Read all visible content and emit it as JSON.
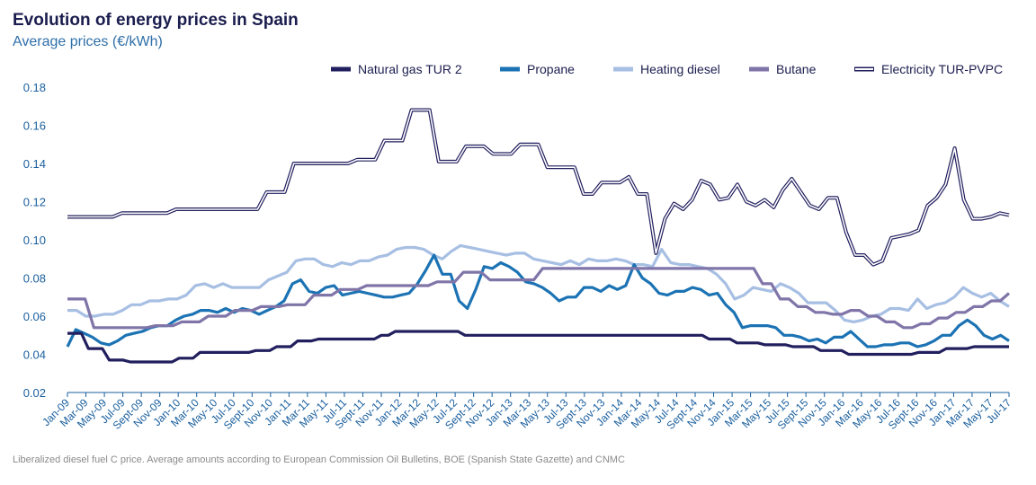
{
  "chart_data": {
    "type": "line",
    "title": "Evolution of energy prices in Spain",
    "subtitle": "Average prices (€/kWh)",
    "note": "Liberalized diesel fuel C price. Average amounts according to European Commission Oil Bulletins, BOE (Spanish State Gazette) and CNMC",
    "ylim": [
      0.02,
      0.18
    ],
    "yticks": [
      "0.02",
      "0.04",
      "0.06",
      "0.08",
      "0.10",
      "0.12",
      "0.14",
      "0.16",
      "0.18"
    ],
    "xtick_labels": [
      "Jan-09",
      "Mar-09",
      "May-09",
      "Jul-09",
      "Sept-09",
      "Nov-09",
      "Jan-10",
      "Mar-10",
      "May-10",
      "Jul-10",
      "Sept-10",
      "Nov-10",
      "Jan-11",
      "Mar-11",
      "May-11",
      "Jul-11",
      "Sept-11",
      "Nov-11",
      "Jan-12",
      "Mar-12",
      "May-12",
      "Jul-12",
      "Sept-12",
      "Nov-12",
      "Jan-13",
      "Mar-13",
      "May-13",
      "Jul-13",
      "Sept-13",
      "Nov-13",
      "Jan-14",
      "Mar-14",
      "May-14",
      "Jul-14",
      "Sept-14",
      "Nov-14",
      "Jan-15",
      "Mar-15",
      "May-15",
      "Jul-15",
      "Sept-15",
      "Nov-15",
      "Jan-16",
      "Mar-16",
      "May-16",
      "Jul-16",
      "Sept-16",
      "Nov-16",
      "Jan-17",
      "Mar-17",
      "May-17",
      "Jul-17"
    ],
    "series": [
      {
        "name": "Natural gas TUR 2",
        "color": "#221f5e",
        "style": "solid",
        "values": [
          0.051,
          0.051,
          0.051,
          0.043,
          0.043,
          0.043,
          0.037,
          0.037,
          0.037,
          0.036,
          0.036,
          0.036,
          0.036,
          0.036,
          0.036,
          0.036,
          0.038,
          0.038,
          0.038,
          0.041,
          0.041,
          0.041,
          0.041,
          0.041,
          0.041,
          0.041,
          0.041,
          0.042,
          0.042,
          0.042,
          0.044,
          0.044,
          0.044,
          0.047,
          0.047,
          0.047,
          0.048,
          0.048,
          0.048,
          0.048,
          0.048,
          0.048,
          0.048,
          0.048,
          0.048,
          0.05,
          0.05,
          0.052,
          0.052,
          0.052,
          0.052,
          0.052,
          0.052,
          0.052,
          0.052,
          0.052,
          0.052,
          0.05,
          0.05,
          0.05,
          0.05,
          0.05,
          0.05,
          0.05,
          0.05,
          0.05,
          0.05,
          0.05,
          0.05,
          0.05,
          0.05,
          0.05,
          0.05,
          0.05,
          0.05,
          0.05,
          0.05,
          0.05,
          0.05,
          0.05,
          0.05,
          0.05,
          0.05,
          0.05,
          0.05,
          0.05,
          0.05,
          0.05,
          0.05,
          0.05,
          0.05,
          0.05,
          0.048,
          0.048,
          0.048,
          0.048,
          0.046,
          0.046,
          0.046,
          0.046,
          0.045,
          0.045,
          0.045,
          0.045,
          0.044,
          0.044,
          0.044,
          0.044,
          0.042,
          0.042,
          0.042,
          0.042,
          0.04,
          0.04,
          0.04,
          0.04,
          0.04,
          0.04,
          0.04,
          0.04,
          0.04,
          0.04,
          0.041,
          0.041,
          0.041,
          0.041,
          0.043,
          0.043,
          0.043,
          0.043,
          0.044,
          0.044,
          0.044,
          0.044,
          0.044,
          0.044
        ]
      },
      {
        "name": "Propane",
        "color": "#1c73b4",
        "style": "solid",
        "values": [
          0.044,
          0.053,
          0.051,
          0.049,
          0.046,
          0.045,
          0.047,
          0.05,
          0.051,
          0.052,
          0.054,
          0.055,
          0.055,
          0.058,
          0.06,
          0.061,
          0.063,
          0.063,
          0.062,
          0.064,
          0.062,
          0.064,
          0.063,
          0.061,
          0.063,
          0.065,
          0.068,
          0.077,
          0.079,
          0.073,
          0.072,
          0.075,
          0.076,
          0.071,
          0.072,
          0.073,
          0.072,
          0.071,
          0.07,
          0.07,
          0.071,
          0.072,
          0.077,
          0.084,
          0.092,
          0.082,
          0.082,
          0.068,
          0.064,
          0.074,
          0.086,
          0.085,
          0.088,
          0.086,
          0.083,
          0.078,
          0.077,
          0.075,
          0.072,
          0.068,
          0.07,
          0.07,
          0.075,
          0.075,
          0.073,
          0.076,
          0.074,
          0.076,
          0.087,
          0.08,
          0.077,
          0.072,
          0.071,
          0.073,
          0.073,
          0.075,
          0.074,
          0.071,
          0.072,
          0.066,
          0.062,
          0.054,
          0.055,
          0.055,
          0.055,
          0.054,
          0.05,
          0.05,
          0.049,
          0.047,
          0.048,
          0.046,
          0.049,
          0.049,
          0.052,
          0.048,
          0.044,
          0.044,
          0.045,
          0.045,
          0.046,
          0.046,
          0.044,
          0.045,
          0.047,
          0.05,
          0.05,
          0.055,
          0.058,
          0.055,
          0.05,
          0.048,
          0.05,
          0.047
        ]
      },
      {
        "name": "Heating diesel",
        "color": "#a7bfe3",
        "style": "solid",
        "values": [
          0.063,
          0.063,
          0.06,
          0.06,
          0.061,
          0.061,
          0.063,
          0.066,
          0.066,
          0.068,
          0.068,
          0.069,
          0.069,
          0.071,
          0.076,
          0.077,
          0.075,
          0.077,
          0.075,
          0.075,
          0.075,
          0.075,
          0.079,
          0.081,
          0.083,
          0.089,
          0.09,
          0.09,
          0.087,
          0.086,
          0.088,
          0.087,
          0.089,
          0.089,
          0.091,
          0.092,
          0.095,
          0.096,
          0.096,
          0.095,
          0.092,
          0.09,
          0.094,
          0.097,
          0.096,
          0.095,
          0.094,
          0.093,
          0.092,
          0.093,
          0.093,
          0.09,
          0.089,
          0.088,
          0.087,
          0.089,
          0.087,
          0.09,
          0.089,
          0.089,
          0.09,
          0.089,
          0.087,
          0.087,
          0.086,
          0.095,
          0.088,
          0.087,
          0.087,
          0.086,
          0.085,
          0.082,
          0.077,
          0.069,
          0.071,
          0.075,
          0.074,
          0.073,
          0.077,
          0.075,
          0.072,
          0.067,
          0.067,
          0.067,
          0.063,
          0.058,
          0.057,
          0.058,
          0.06,
          0.061,
          0.064,
          0.064,
          0.063,
          0.069,
          0.064,
          0.066,
          0.067,
          0.07,
          0.075,
          0.072,
          0.07,
          0.072,
          0.068,
          0.065
        ]
      },
      {
        "name": "Butane",
        "color": "#8075a8",
        "style": "solid",
        "values": [
          0.069,
          0.069,
          0.069,
          0.054,
          0.054,
          0.054,
          0.054,
          0.054,
          0.054,
          0.054,
          0.055,
          0.055,
          0.055,
          0.057,
          0.057,
          0.057,
          0.06,
          0.06,
          0.06,
          0.063,
          0.063,
          0.063,
          0.065,
          0.065,
          0.065,
          0.066,
          0.066,
          0.066,
          0.071,
          0.071,
          0.071,
          0.074,
          0.074,
          0.074,
          0.076,
          0.076,
          0.076,
          0.076,
          0.076,
          0.076,
          0.076,
          0.076,
          0.078,
          0.078,
          0.078,
          0.083,
          0.083,
          0.083,
          0.079,
          0.079,
          0.079,
          0.079,
          0.079,
          0.079,
          0.085,
          0.085,
          0.085,
          0.085,
          0.085,
          0.085,
          0.085,
          0.085,
          0.085,
          0.085,
          0.085,
          0.085,
          0.085,
          0.085,
          0.085,
          0.085,
          0.085,
          0.085,
          0.085,
          0.085,
          0.085,
          0.085,
          0.085,
          0.085,
          0.085,
          0.077,
          0.077,
          0.069,
          0.069,
          0.065,
          0.065,
          0.062,
          0.062,
          0.061,
          0.061,
          0.063,
          0.063,
          0.06,
          0.06,
          0.057,
          0.057,
          0.054,
          0.054,
          0.056,
          0.056,
          0.059,
          0.059,
          0.062,
          0.062,
          0.065,
          0.065,
          0.068,
          0.068,
          0.072
        ]
      },
      {
        "name": "Electricity TUR-PVPC",
        "color": "#221f5e",
        "style": "double",
        "values": [
          0.112,
          0.112,
          0.112,
          0.112,
          0.112,
          0.112,
          0.114,
          0.114,
          0.114,
          0.114,
          0.114,
          0.114,
          0.116,
          0.116,
          0.116,
          0.116,
          0.116,
          0.116,
          0.116,
          0.116,
          0.116,
          0.116,
          0.125,
          0.125,
          0.125,
          0.14,
          0.14,
          0.14,
          0.14,
          0.14,
          0.14,
          0.14,
          0.142,
          0.142,
          0.142,
          0.152,
          0.152,
          0.152,
          0.168,
          0.168,
          0.168,
          0.141,
          0.141,
          0.141,
          0.149,
          0.149,
          0.149,
          0.145,
          0.145,
          0.145,
          0.15,
          0.15,
          0.15,
          0.138,
          0.138,
          0.138,
          0.138,
          0.124,
          0.124,
          0.13,
          0.13,
          0.13,
          0.133,
          0.124,
          0.124,
          0.093,
          0.111,
          0.119,
          0.116,
          0.121,
          0.131,
          0.129,
          0.121,
          0.122,
          0.129,
          0.12,
          0.118,
          0.121,
          0.117,
          0.126,
          0.132,
          0.125,
          0.118,
          0.116,
          0.122,
          0.122,
          0.104,
          0.092,
          0.092,
          0.087,
          0.089,
          0.101,
          0.102,
          0.103,
          0.105,
          0.118,
          0.122,
          0.129,
          0.148,
          0.121,
          0.111,
          0.111,
          0.112,
          0.114,
          0.113
        ]
      }
    ],
    "legend_position": "top-right"
  },
  "colors": {
    "title": "#1b1d4e",
    "subtitle": "#2f6fa8",
    "axis": "#1a5f9e"
  }
}
